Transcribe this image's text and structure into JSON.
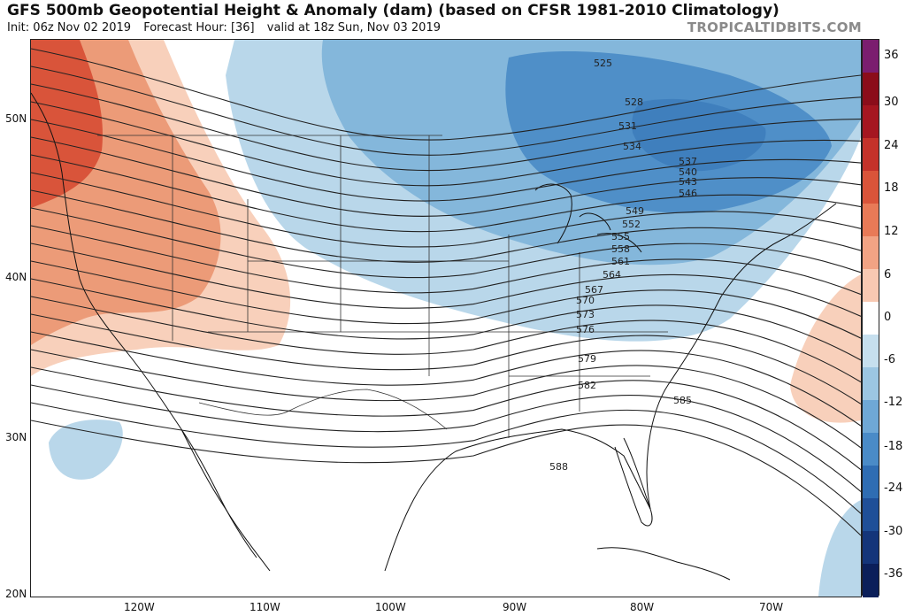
{
  "header": {
    "title": "GFS 500mb Geopotential Height & Anomaly (dam) (based on CFSR 1981-2010 Climatology)",
    "init": "Init: 06z Nov 02 2019",
    "forecast_hour": "Forecast Hour: [36]",
    "valid": "valid at 18z Sun, Nov 03 2019",
    "brand": "TROPICALTIDBITS.COM"
  },
  "map": {
    "lat_labels": [
      "50N",
      "40N",
      "30N",
      "20N"
    ],
    "lon_labels": [
      "120W",
      "110W",
      "100W",
      "90W",
      "80W",
      "70W"
    ],
    "contour_labels": [
      "525",
      "528",
      "531",
      "534",
      "537",
      "540",
      "543",
      "546",
      "549",
      "552",
      "555",
      "558",
      "561",
      "564",
      "567",
      "570",
      "573",
      "576",
      "579",
      "582",
      "585",
      "588"
    ],
    "anomaly_colors": {
      "positive_strong": "#d9543a",
      "positive_mid": "#ec9b78",
      "positive_light": "#f8d0bb",
      "negative_light": "#b9d7ea",
      "negative_mid": "#84b7db",
      "negative_strong": "#4f8fc8"
    }
  },
  "colorbar": {
    "ticks": [
      "36",
      "30",
      "24",
      "18",
      "12",
      "6",
      "0",
      "-6",
      "-12",
      "-18",
      "-24",
      "-30",
      "-36"
    ],
    "colors": [
      "#7b1d6f",
      "#8b0d1a",
      "#a51620",
      "#c4322a",
      "#d9543a",
      "#e87a57",
      "#f1a384",
      "#f8c9b2",
      "#ffffff",
      "#c6dfee",
      "#9cc6e2",
      "#6fa8d6",
      "#4a8bc7",
      "#2f6db3",
      "#1f4f98",
      "#14357a",
      "#0b1f5a"
    ]
  }
}
